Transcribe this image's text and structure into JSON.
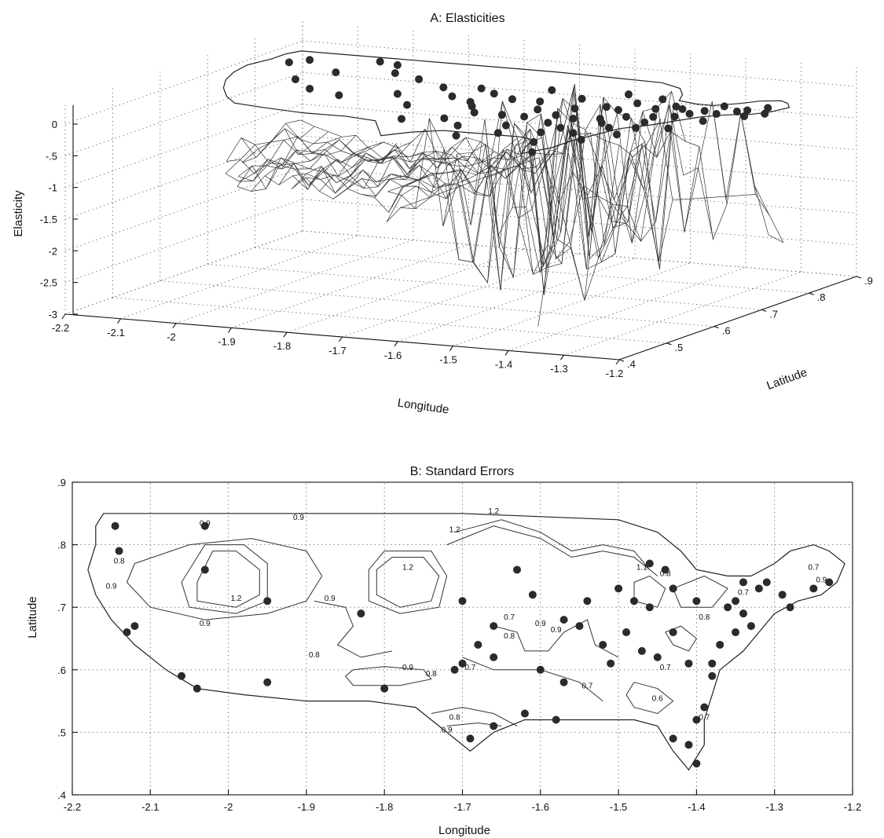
{
  "chart_data": [
    {
      "panel": "A",
      "type": "surface",
      "title": "A: Elasticities",
      "xlabel": "Longitude",
      "ylabel": "Latitude",
      "zlabel": "Elasticity",
      "x_ticks": [
        "-2.2",
        "-2.1",
        "-2",
        "-1.9",
        "-1.8",
        "-1.7",
        "-1.6",
        "-1.5",
        "-1.4",
        "-1.3",
        "-1.2"
      ],
      "y_ticks": [
        ".4",
        ".5",
        ".6",
        ".7",
        ".8",
        ".9"
      ],
      "z_ticks": [
        "0",
        "-.5",
        "-1",
        "-1.5",
        "-2",
        "-2.5",
        "-3"
      ],
      "xlim": [
        -2.2,
        -1.2
      ],
      "ylim": [
        0.4,
        0.9
      ],
      "zlim": [
        -3,
        0.3
      ],
      "grid": true,
      "surface_west_level": -1.25,
      "surface_east_range": [
        -3.0,
        0.3
      ],
      "points_elevation": 0,
      "points": [
        [
          -2.13,
          0.79
        ],
        [
          -2.11,
          0.81
        ],
        [
          -2.0,
          0.83
        ],
        [
          -1.96,
          0.82
        ],
        [
          -1.93,
          0.78
        ],
        [
          -2.02,
          0.76
        ],
        [
          -1.87,
          0.76
        ],
        [
          -1.8,
          0.73
        ],
        [
          -1.74,
          0.74
        ],
        [
          -1.63,
          0.76
        ],
        [
          -1.55,
          0.73
        ],
        [
          -1.5,
          0.77
        ],
        [
          -1.43,
          0.76
        ],
        [
          -1.38,
          0.73
        ],
        [
          -1.32,
          0.72
        ],
        [
          -1.27,
          0.73
        ],
        [
          -1.24,
          0.71
        ],
        [
          -2.05,
          0.71
        ],
        [
          -1.99,
          0.67
        ],
        [
          -1.92,
          0.65
        ],
        [
          -1.84,
          0.68
        ],
        [
          -1.78,
          0.63
        ],
        [
          -1.7,
          0.67
        ],
        [
          -1.65,
          0.7
        ],
        [
          -1.6,
          0.62
        ],
        [
          -1.57,
          0.66
        ],
        [
          -1.52,
          0.68
        ],
        [
          -1.48,
          0.63
        ],
        [
          -1.45,
          0.69
        ],
        [
          -1.41,
          0.66
        ],
        [
          -1.36,
          0.64
        ],
        [
          -1.34,
          0.68
        ],
        [
          -1.46,
          0.58
        ],
        [
          -1.42,
          0.56
        ],
        [
          -1.39,
          0.6
        ],
        [
          -1.5,
          0.6
        ],
        [
          -1.55,
          0.57
        ],
        [
          -1.62,
          0.55
        ],
        [
          -1.67,
          0.58
        ],
        [
          -1.73,
          0.56
        ],
        [
          -1.58,
          0.5
        ],
        [
          -1.44,
          0.5
        ],
        [
          -1.4,
          0.45
        ],
        [
          -1.3,
          0.62
        ],
        [
          -1.28,
          0.67
        ],
        [
          -1.31,
          0.75
        ],
        [
          -1.35,
          0.57
        ],
        [
          -1.38,
          0.53
        ],
        [
          -1.53,
          0.53
        ],
        [
          -1.47,
          0.55
        ],
        [
          -1.65,
          0.62
        ],
        [
          -1.7,
          0.72
        ],
        [
          -1.75,
          0.69
        ],
        [
          -1.68,
          0.65
        ],
        [
          -1.6,
          0.7
        ],
        [
          -1.56,
          0.62
        ],
        [
          -1.52,
          0.64
        ],
        [
          -1.33,
          0.7
        ],
        [
          -1.29,
          0.71
        ],
        [
          -1.26,
          0.74
        ],
        [
          -1.24,
          0.76
        ],
        [
          -1.22,
          0.73
        ],
        [
          -1.36,
          0.72
        ],
        [
          -1.4,
          0.71
        ],
        [
          -1.45,
          0.73
        ],
        [
          -1.48,
          0.7
        ],
        [
          -1.42,
          0.62
        ],
        [
          -1.44,
          0.64
        ],
        [
          -1.37,
          0.67
        ],
        [
          -1.35,
          0.61
        ]
      ]
    },
    {
      "panel": "B",
      "type": "contour",
      "title": "B: Standard Errors",
      "xlabel": "Longitude",
      "ylabel": "Latitude",
      "x_ticks": [
        "-2.2",
        "-2.1",
        "-2",
        "-1.9",
        "-1.8",
        "-1.7",
        "-1.6",
        "-1.5",
        "-1.4",
        "-1.3",
        "-1.2"
      ],
      "y_ticks": [
        ".4",
        ".5",
        ".6",
        ".7",
        ".8",
        ".9"
      ],
      "xlim": [
        -2.2,
        -1.2
      ],
      "ylim": [
        0.4,
        0.9
      ],
      "grid": true,
      "contour_labels": [
        {
          "text": "0.9",
          "x": -2.03,
          "y": 0.83
        },
        {
          "text": "0.8",
          "x": -2.14,
          "y": 0.77
        },
        {
          "text": "0.9",
          "x": -1.91,
          "y": 0.84
        },
        {
          "text": "1.2",
          "x": -1.66,
          "y": 0.85
        },
        {
          "text": "1.2",
          "x": -1.71,
          "y": 0.82
        },
        {
          "text": "1.2",
          "x": -1.99,
          "y": 0.71
        },
        {
          "text": "1.2",
          "x": -1.77,
          "y": 0.76
        },
        {
          "text": "0.9",
          "x": -2.15,
          "y": 0.73
        },
        {
          "text": "0.9",
          "x": -2.03,
          "y": 0.67
        },
        {
          "text": "0.9",
          "x": -1.87,
          "y": 0.71
        },
        {
          "text": "0.8",
          "x": -1.89,
          "y": 0.62
        },
        {
          "text": "0.9",
          "x": -1.77,
          "y": 0.6
        },
        {
          "text": "0.8",
          "x": -1.74,
          "y": 0.59
        },
        {
          "text": "0.7",
          "x": -1.69,
          "y": 0.6
        },
        {
          "text": "0.8",
          "x": -1.71,
          "y": 0.52
        },
        {
          "text": "0.9",
          "x": -1.72,
          "y": 0.5
        },
        {
          "text": "0.7",
          "x": -1.64,
          "y": 0.68
        },
        {
          "text": "0.8",
          "x": -1.64,
          "y": 0.65
        },
        {
          "text": "0.9",
          "x": -1.6,
          "y": 0.67
        },
        {
          "text": "0.7",
          "x": -1.54,
          "y": 0.57
        },
        {
          "text": "0.6",
          "x": -1.45,
          "y": 0.55
        },
        {
          "text": "0.7",
          "x": -1.44,
          "y": 0.6
        },
        {
          "text": "0.7",
          "x": -1.34,
          "y": 0.72
        },
        {
          "text": "0.9",
          "x": -1.24,
          "y": 0.74
        },
        {
          "text": "0.7",
          "x": -1.25,
          "y": 0.76
        },
        {
          "text": "1.1",
          "x": -1.47,
          "y": 0.76
        },
        {
          "text": "0.8",
          "x": -1.44,
          "y": 0.75
        },
        {
          "text": "0.8",
          "x": -1.39,
          "y": 0.68
        },
        {
          "text": "0.7",
          "x": -1.39,
          "y": 0.52
        },
        {
          "text": "0.9",
          "x": -1.58,
          "y": 0.66
        }
      ],
      "points": [
        [
          -2.145,
          0.83
        ],
        [
          -2.03,
          0.83
        ],
        [
          -2.14,
          0.79
        ],
        [
          -2.03,
          0.76
        ],
        [
          -1.95,
          0.71
        ],
        [
          -1.83,
          0.69
        ],
        [
          -2.13,
          0.66
        ],
        [
          -2.12,
          0.67
        ],
        [
          -2.06,
          0.59
        ],
        [
          -2.04,
          0.57
        ],
        [
          -1.95,
          0.58
        ],
        [
          -1.8,
          0.57
        ],
        [
          -1.7,
          0.71
        ],
        [
          -1.71,
          0.6
        ],
        [
          -1.63,
          0.76
        ],
        [
          -1.61,
          0.72
        ],
        [
          -1.66,
          0.67
        ],
        [
          -1.68,
          0.64
        ],
        [
          -1.66,
          0.62
        ],
        [
          -1.6,
          0.6
        ],
        [
          -1.7,
          0.61
        ],
        [
          -1.66,
          0.51
        ],
        [
          -1.69,
          0.49
        ],
        [
          -1.57,
          0.68
        ],
        [
          -1.54,
          0.71
        ],
        [
          -1.55,
          0.67
        ],
        [
          -1.57,
          0.58
        ],
        [
          -1.5,
          0.73
        ],
        [
          -1.48,
          0.71
        ],
        [
          -1.46,
          0.7
        ],
        [
          -1.52,
          0.64
        ],
        [
          -1.49,
          0.66
        ],
        [
          -1.47,
          0.63
        ],
        [
          -1.45,
          0.62
        ],
        [
          -1.43,
          0.73
        ],
        [
          -1.44,
          0.76
        ],
        [
          -1.46,
          0.77
        ],
        [
          -1.4,
          0.71
        ],
        [
          -1.37,
          0.64
        ],
        [
          -1.38,
          0.61
        ],
        [
          -1.38,
          0.59
        ],
        [
          -1.39,
          0.54
        ],
        [
          -1.4,
          0.52
        ],
        [
          -1.43,
          0.49
        ],
        [
          -1.41,
          0.48
        ],
        [
          -1.4,
          0.45
        ],
        [
          -1.34,
          0.74
        ],
        [
          -1.32,
          0.73
        ],
        [
          -1.34,
          0.69
        ],
        [
          -1.33,
          0.67
        ],
        [
          -1.35,
          0.66
        ],
        [
          -1.29,
          0.72
        ],
        [
          -1.28,
          0.7
        ],
        [
          -1.31,
          0.74
        ],
        [
          -1.25,
          0.73
        ],
        [
          -1.23,
          0.74
        ],
        [
          -1.43,
          0.66
        ],
        [
          -1.41,
          0.61
        ],
        [
          -1.62,
          0.53
        ],
        [
          -1.51,
          0.61
        ],
        [
          -1.35,
          0.71
        ],
        [
          -1.36,
          0.7
        ],
        [
          -1.58,
          0.52
        ]
      ]
    }
  ]
}
